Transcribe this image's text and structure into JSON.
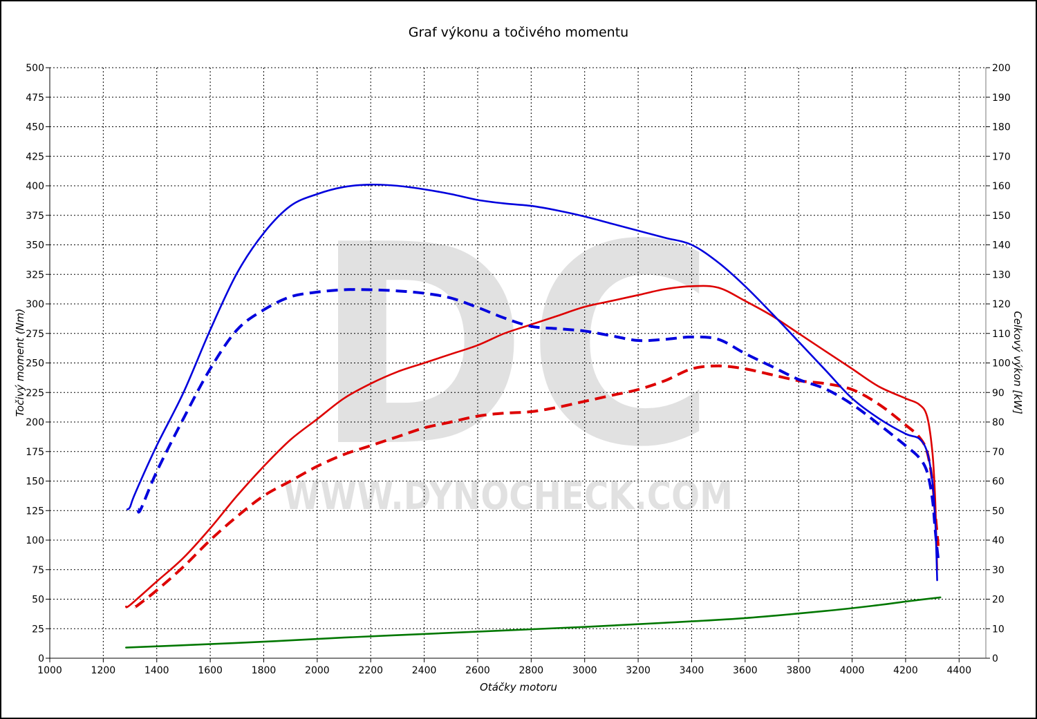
{
  "chart_data": {
    "type": "line",
    "title": "Graf výkonu a točivého momentu",
    "xlabel": "Otáčky motoru",
    "ylabel_left": "Točivý moment (Nm)",
    "ylabel_right": "Celkový výkon [kW]",
    "watermark": {
      "letters": "DC",
      "url": "WWW.DYNOCHECK.COM"
    },
    "xlim": [
      1000,
      4500
    ],
    "ylim_left": [
      0,
      500
    ],
    "ylim_right": [
      0,
      200
    ],
    "x_ticks": [
      1000,
      1200,
      1400,
      1600,
      1800,
      2000,
      2200,
      2400,
      2600,
      2800,
      3000,
      3200,
      3400,
      3600,
      3800,
      4000,
      4200,
      4400
    ],
    "y_left_ticks": [
      0,
      25,
      50,
      75,
      100,
      125,
      150,
      175,
      200,
      225,
      250,
      275,
      300,
      325,
      350,
      375,
      400,
      425,
      450,
      475,
      500
    ],
    "y_right_ticks": [
      0,
      10,
      20,
      30,
      40,
      50,
      60,
      70,
      80,
      90,
      100,
      110,
      120,
      130,
      140,
      150,
      160,
      170,
      180,
      190,
      200
    ],
    "grid": true,
    "legend": "none",
    "colors": {
      "torque": "#0000dd",
      "power": "#dd0000",
      "losses": "#007700"
    },
    "series": [
      {
        "id": "torque-tuned",
        "axis": "left",
        "color": "#0000dd",
        "dash": false,
        "points": [
          [
            1290,
            126
          ],
          [
            1300,
            128
          ],
          [
            1320,
            140
          ],
          [
            1400,
            180
          ],
          [
            1500,
            225
          ],
          [
            1600,
            278
          ],
          [
            1700,
            326
          ],
          [
            1800,
            360
          ],
          [
            1900,
            383
          ],
          [
            2000,
            393
          ],
          [
            2100,
            399
          ],
          [
            2200,
            401
          ],
          [
            2300,
            400
          ],
          [
            2400,
            397
          ],
          [
            2500,
            393
          ],
          [
            2600,
            388
          ],
          [
            2700,
            385
          ],
          [
            2800,
            383
          ],
          [
            2900,
            379
          ],
          [
            3000,
            374
          ],
          [
            3100,
            368
          ],
          [
            3200,
            362
          ],
          [
            3300,
            356
          ],
          [
            3400,
            350
          ],
          [
            3500,
            335
          ],
          [
            3600,
            315
          ],
          [
            3700,
            292
          ],
          [
            3800,
            268
          ],
          [
            3900,
            244
          ],
          [
            4000,
            220
          ],
          [
            4100,
            203
          ],
          [
            4200,
            190
          ],
          [
            4250,
            186
          ],
          [
            4280,
            175
          ],
          [
            4300,
            150
          ],
          [
            4310,
            120
          ],
          [
            4315,
            90
          ],
          [
            4318,
            66
          ]
        ]
      },
      {
        "id": "torque-stock",
        "axis": "left",
        "color": "#0000dd",
        "dash": true,
        "points": [
          [
            1330,
            126
          ],
          [
            1340,
            126
          ],
          [
            1400,
            158
          ],
          [
            1500,
            203
          ],
          [
            1600,
            245
          ],
          [
            1700,
            278
          ],
          [
            1800,
            295
          ],
          [
            1900,
            306
          ],
          [
            2000,
            310
          ],
          [
            2100,
            312
          ],
          [
            2200,
            312
          ],
          [
            2300,
            311
          ],
          [
            2400,
            309
          ],
          [
            2500,
            305
          ],
          [
            2600,
            297
          ],
          [
            2700,
            288
          ],
          [
            2800,
            281
          ],
          [
            2900,
            279
          ],
          [
            3000,
            277
          ],
          [
            3100,
            273
          ],
          [
            3200,
            269
          ],
          [
            3300,
            270
          ],
          [
            3400,
            272
          ],
          [
            3500,
            270
          ],
          [
            3600,
            258
          ],
          [
            3700,
            247
          ],
          [
            3800,
            236
          ],
          [
            3900,
            228
          ],
          [
            4000,
            215
          ],
          [
            4100,
            198
          ],
          [
            4200,
            180
          ],
          [
            4250,
            170
          ],
          [
            4280,
            158
          ],
          [
            4300,
            135
          ],
          [
            4310,
            110
          ],
          [
            4320,
            88
          ],
          [
            4325,
            81
          ]
        ]
      },
      {
        "id": "power-tuned",
        "axis": "right",
        "color": "#dd0000",
        "dash": false,
        "points": [
          [
            1285,
            17.5
          ],
          [
            1300,
            18
          ],
          [
            1400,
            26
          ],
          [
            1500,
            34
          ],
          [
            1600,
            44
          ],
          [
            1700,
            55
          ],
          [
            1800,
            65
          ],
          [
            1900,
            74
          ],
          [
            2000,
            81
          ],
          [
            2100,
            88
          ],
          [
            2200,
            93
          ],
          [
            2300,
            97
          ],
          [
            2400,
            100
          ],
          [
            2500,
            103
          ],
          [
            2600,
            106
          ],
          [
            2700,
            110
          ],
          [
            2800,
            113
          ],
          [
            2900,
            116
          ],
          [
            3000,
            119
          ],
          [
            3100,
            121
          ],
          [
            3200,
            123
          ],
          [
            3300,
            125
          ],
          [
            3400,
            126
          ],
          [
            3500,
            125.5
          ],
          [
            3600,
            121
          ],
          [
            3700,
            116
          ],
          [
            3800,
            110
          ],
          [
            3900,
            104
          ],
          [
            4000,
            98
          ],
          [
            4100,
            92
          ],
          [
            4200,
            88
          ],
          [
            4250,
            86
          ],
          [
            4280,
            82
          ],
          [
            4300,
            70
          ],
          [
            4310,
            55
          ],
          [
            4315,
            40
          ],
          [
            4318,
            30
          ]
        ]
      },
      {
        "id": "power-stock",
        "axis": "right",
        "color": "#dd0000",
        "dash": true,
        "points": [
          [
            1320,
            17.5
          ],
          [
            1330,
            18
          ],
          [
            1400,
            23
          ],
          [
            1500,
            31
          ],
          [
            1600,
            40
          ],
          [
            1700,
            48
          ],
          [
            1800,
            55
          ],
          [
            1900,
            60
          ],
          [
            2000,
            65
          ],
          [
            2100,
            69
          ],
          [
            2200,
            72
          ],
          [
            2300,
            75
          ],
          [
            2400,
            78
          ],
          [
            2500,
            80
          ],
          [
            2600,
            82
          ],
          [
            2700,
            83
          ],
          [
            2800,
            83.5
          ],
          [
            2900,
            85
          ],
          [
            3000,
            87
          ],
          [
            3100,
            89
          ],
          [
            3200,
            91
          ],
          [
            3300,
            94
          ],
          [
            3400,
            98
          ],
          [
            3500,
            99
          ],
          [
            3600,
            98
          ],
          [
            3700,
            96
          ],
          [
            3800,
            94
          ],
          [
            3900,
            93
          ],
          [
            4000,
            91
          ],
          [
            4100,
            86
          ],
          [
            4200,
            79
          ],
          [
            4250,
            75
          ],
          [
            4280,
            70
          ],
          [
            4300,
            60
          ],
          [
            4310,
            50
          ],
          [
            4318,
            42
          ],
          [
            4322,
            38
          ]
        ]
      },
      {
        "id": "losses",
        "axis": "left",
        "color": "#007700",
        "dash": false,
        "points": [
          [
            1285,
            9
          ],
          [
            1500,
            11
          ],
          [
            1800,
            14
          ],
          [
            2100,
            17.5
          ],
          [
            2400,
            20.5
          ],
          [
            2700,
            23.5
          ],
          [
            3000,
            26.5
          ],
          [
            3300,
            30
          ],
          [
            3600,
            34
          ],
          [
            3900,
            40
          ],
          [
            4100,
            45
          ],
          [
            4200,
            48
          ],
          [
            4330,
            51.5
          ]
        ]
      }
    ]
  }
}
